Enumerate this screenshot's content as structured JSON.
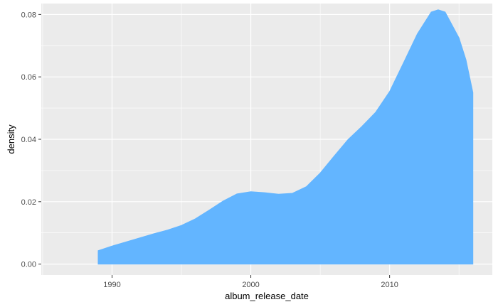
{
  "chart_data": {
    "type": "area",
    "title": "",
    "xlabel": "album_release_date",
    "ylabel": "density",
    "xlim": [
      1984.9,
      2017.4
    ],
    "ylim": [
      -0.0035,
      0.0835
    ],
    "x_ticks": [
      1990,
      2000,
      2010
    ],
    "y_ticks": [
      0.0,
      0.02,
      0.04,
      0.06,
      0.08
    ],
    "x_tick_labels": [
      "1990",
      "2000",
      "2010"
    ],
    "y_tick_labels": [
      "0.00",
      "0.02",
      "0.04",
      "0.06",
      "0.08"
    ],
    "grid": true,
    "legend": "none",
    "colors": {
      "fill": "#63B5FF",
      "panel": "#EBEBEB",
      "grid": "#FFFFFF"
    },
    "series": [
      {
        "x": [
          1989.0,
          1990.0,
          1991.0,
          1992.0,
          1993.0,
          1994.0,
          1995.0,
          1996.0,
          1997.0,
          1998.0,
          1999.0,
          2000.0,
          2001.0,
          2002.0,
          2003.0,
          2004.0,
          2005.0,
          2006.0,
          2007.0,
          2008.0,
          2009.0,
          2010.0,
          2011.0,
          2012.0,
          2013.0,
          2013.5,
          2014.0,
          2015.0,
          2015.5,
          2016.0
        ],
        "y": [
          0.0043,
          0.0058,
          0.0071,
          0.0084,
          0.0097,
          0.0109,
          0.0124,
          0.0145,
          0.0173,
          0.0202,
          0.0225,
          0.0232,
          0.0229,
          0.0224,
          0.0227,
          0.0248,
          0.0292,
          0.0346,
          0.0399,
          0.0441,
          0.0487,
          0.0553,
          0.0645,
          0.0738,
          0.0808,
          0.0815,
          0.0808,
          0.0725,
          0.0655,
          0.055
        ]
      }
    ]
  }
}
